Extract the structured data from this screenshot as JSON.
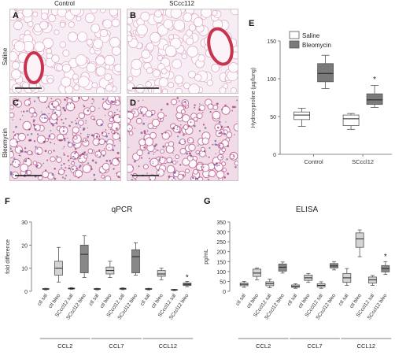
{
  "micrographs": {
    "column_labels": [
      "Control",
      "SCcc112"
    ],
    "row_labels": [
      "Saline",
      "Bleomycin"
    ],
    "panels": [
      {
        "letter": "A",
        "tissue": "saline"
      },
      {
        "letter": "B",
        "tissue": "saline"
      },
      {
        "letter": "C",
        "tissue": "bleomycin"
      },
      {
        "letter": "D",
        "tissue": "bleomycin-mild"
      }
    ]
  },
  "panel_letters": {
    "e": "E",
    "f": "F",
    "g": "G"
  },
  "colors": {
    "light_box": "#ffffff",
    "dark_box": "#7a7a7a",
    "grey_box": "#d4d4d4",
    "dark_grey_box": "#888888",
    "stain_red": "#c8334e",
    "tissue_pink": "#e9b9cf"
  },
  "chart_data": [
    {
      "id": "E",
      "type": "box",
      "ylabel": "Hydroxyproline (µg/lung)",
      "ylim": [
        0,
        150
      ],
      "yticks": [
        0,
        50,
        100,
        150
      ],
      "groups": [
        "Control",
        "SCccl12"
      ],
      "legend": {
        "position": "top-left",
        "entries": [
          "Saline",
          "Bleomycin"
        ]
      },
      "series": [
        {
          "name": "Saline",
          "color_key": "light_box",
          "boxes": [
            {
              "whisker_low": 37,
              "q1": 46,
              "median": 52,
              "q3": 56,
              "whisker_high": 61
            },
            {
              "whisker_low": 33,
              "q1": 38,
              "median": 47,
              "q3": 52,
              "whisker_high": 54
            }
          ]
        },
        {
          "name": "Bleomycin",
          "color_key": "dark_box",
          "boxes": [
            {
              "whisker_low": 87,
              "q1": 96,
              "median": 107,
              "q3": 120,
              "whisker_high": 131
            },
            {
              "whisker_low": 62,
              "q1": 66,
              "median": 72,
              "q3": 80,
              "whisker_high": 91
            }
          ]
        }
      ],
      "annotations": [
        {
          "text": "*",
          "group": 1,
          "series": 1,
          "value": 99
        }
      ]
    },
    {
      "id": "F",
      "type": "box",
      "title": "qPCR",
      "ylabel": "fold difference",
      "ylim": [
        0,
        30
      ],
      "yticks": [
        0,
        10,
        20,
        30
      ],
      "categories": [
        "ctl sal",
        "ctl bleo",
        "SCccl12 sal",
        "SCccl12 bleo",
        "ctl sal",
        "ctl bleo",
        "SCccl12 sal",
        "SCccl12 bleo",
        "ctl sal",
        "ctl bleo",
        "SCccl12 sal",
        "SCccl12 bleo"
      ],
      "gene_groups": [
        "CCL2",
        "CCL7",
        "CCL12"
      ],
      "boxes": [
        {
          "whisker_low": 0.6,
          "q1": 0.8,
          "median": 1.0,
          "q3": 1.2,
          "whisker_high": 1.3,
          "color_key": "grey_box"
        },
        {
          "whisker_low": 4,
          "q1": 7,
          "median": 10,
          "q3": 13,
          "whisker_high": 19,
          "color_key": "grey_box"
        },
        {
          "whisker_low": 0.8,
          "q1": 1.0,
          "median": 1.2,
          "q3": 1.4,
          "whisker_high": 1.6,
          "color_key": "dark_grey_box"
        },
        {
          "whisker_low": 6,
          "q1": 8,
          "median": 16,
          "q3": 20,
          "whisker_high": 24,
          "color_key": "dark_grey_box"
        },
        {
          "whisker_low": 0.6,
          "q1": 0.8,
          "median": 1.0,
          "q3": 1.2,
          "whisker_high": 1.3,
          "color_key": "grey_box"
        },
        {
          "whisker_low": 6,
          "q1": 7.5,
          "median": 9,
          "q3": 10.5,
          "whisker_high": 13,
          "color_key": "grey_box"
        },
        {
          "whisker_low": 0.7,
          "q1": 0.9,
          "median": 1.1,
          "q3": 1.3,
          "whisker_high": 1.5,
          "color_key": "dark_grey_box"
        },
        {
          "whisker_low": 7,
          "q1": 8,
          "median": 15,
          "q3": 18,
          "whisker_high": 21,
          "color_key": "dark_grey_box"
        },
        {
          "whisker_low": 0.6,
          "q1": 0.8,
          "median": 1.0,
          "q3": 1.2,
          "whisker_high": 1.3,
          "color_key": "grey_box"
        },
        {
          "whisker_low": 5,
          "q1": 6.5,
          "median": 7.5,
          "q3": 9,
          "whisker_high": 10,
          "color_key": "grey_box"
        },
        {
          "whisker_low": 0.3,
          "q1": 0.5,
          "median": 0.6,
          "q3": 0.8,
          "whisker_high": 0.9,
          "color_key": "dark_grey_box"
        },
        {
          "whisker_low": 2,
          "q1": 2.5,
          "median": 3,
          "q3": 3.6,
          "whisker_high": 4.3,
          "color_key": "dark_grey_box"
        }
      ],
      "annotations": [
        {
          "text": "*",
          "box": 11,
          "value": 6
        }
      ]
    },
    {
      "id": "G",
      "type": "box",
      "title": "ELISA",
      "ylabel": "pg/mL",
      "ylim": [
        0,
        350
      ],
      "yticks": [
        0,
        50,
        100,
        150,
        200,
        250,
        300,
        350
      ],
      "categories": [
        "ctl sal",
        "ctl bleo",
        "SCccl12 sal",
        "SCccl12 bleo",
        "ctl sal",
        "ctl bleo",
        "SCccl12 sal",
        "SCccl12 bleo",
        "ctl sal",
        "ctl bleo",
        "SCccl12 sal",
        "SCccl12 bleo"
      ],
      "gene_groups": [
        "CCL2",
        "CCL7",
        "CCL12"
      ],
      "boxes": [
        {
          "whisker_low": 20,
          "q1": 28,
          "median": 35,
          "q3": 42,
          "whisker_high": 50,
          "color_key": "grey_box"
        },
        {
          "whisker_low": 58,
          "q1": 75,
          "median": 92,
          "q3": 112,
          "whisker_high": 118,
          "color_key": "grey_box"
        },
        {
          "whisker_low": 18,
          "q1": 28,
          "median": 38,
          "q3": 48,
          "whisker_high": 62,
          "color_key": "grey_box"
        },
        {
          "whisker_low": 92,
          "q1": 102,
          "median": 122,
          "q3": 138,
          "whisker_high": 148,
          "color_key": "dark_grey_box"
        },
        {
          "whisker_low": 15,
          "q1": 20,
          "median": 25,
          "q3": 32,
          "whisker_high": 38,
          "color_key": "grey_box"
        },
        {
          "whisker_low": 45,
          "q1": 55,
          "median": 68,
          "q3": 82,
          "whisker_high": 90,
          "color_key": "grey_box"
        },
        {
          "whisker_low": 15,
          "q1": 22,
          "median": 30,
          "q3": 38,
          "whisker_high": 48,
          "color_key": "grey_box"
        },
        {
          "whisker_low": 108,
          "q1": 118,
          "median": 128,
          "q3": 140,
          "whisker_high": 150,
          "color_key": "dark_grey_box"
        },
        {
          "whisker_low": 30,
          "q1": 45,
          "median": 68,
          "q3": 90,
          "whisker_high": 115,
          "color_key": "grey_box"
        },
        {
          "whisker_low": 175,
          "q1": 222,
          "median": 265,
          "q3": 295,
          "whisker_high": 310,
          "color_key": "grey_box"
        },
        {
          "whisker_low": 30,
          "q1": 42,
          "median": 58,
          "q3": 72,
          "whisker_high": 80,
          "color_key": "grey_box"
        },
        {
          "whisker_low": 85,
          "q1": 98,
          "median": 115,
          "q3": 130,
          "whisker_high": 150,
          "color_key": "dark_grey_box"
        }
      ],
      "annotations": [
        {
          "text": "*",
          "box": 11,
          "value": 175
        }
      ]
    }
  ]
}
